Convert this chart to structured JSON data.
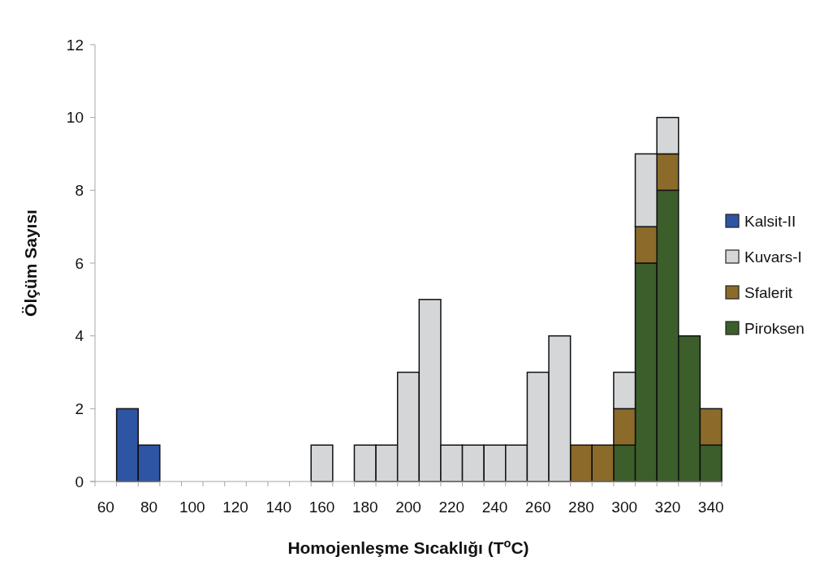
{
  "chart_data": {
    "type": "bar",
    "stacked": true,
    "xlabel": "Homojenleşme Sıcaklığı (T$^{o}$C)",
    "ylabel": "Ölçüm Sayısı",
    "categories": [
      "60",
      null,
      "80",
      null,
      "100",
      null,
      "120",
      null,
      "140",
      null,
      "160",
      null,
      "180",
      null,
      "200",
      null,
      "220",
      null,
      "240",
      null,
      "260",
      null,
      "280",
      null,
      "300",
      null,
      "320",
      null,
      "340"
    ],
    "series": [
      {
        "name": "Piroksen",
        "color": "#3b5e2b",
        "values": [
          0,
          0,
          0,
          0,
          0,
          0,
          0,
          0,
          0,
          0,
          0,
          0,
          0,
          0,
          0,
          0,
          0,
          0,
          0,
          0,
          0,
          0,
          0,
          0,
          1,
          6,
          8,
          4,
          1
        ]
      },
      {
        "name": "Sfalerit",
        "color": "#8b6a2a",
        "values": [
          0,
          0,
          0,
          0,
          0,
          0,
          0,
          0,
          0,
          0,
          0,
          0,
          0,
          0,
          0,
          0,
          0,
          0,
          0,
          0,
          0,
          0,
          1,
          1,
          1,
          1,
          1,
          0,
          1
        ]
      },
      {
        "name": "Kuvars-I",
        "color": "#d5d6d8",
        "values": [
          0,
          0,
          0,
          0,
          0,
          0,
          0,
          0,
          0,
          0,
          1,
          0,
          1,
          1,
          3,
          5,
          1,
          1,
          1,
          1,
          3,
          4,
          0,
          0,
          1,
          2,
          1,
          0,
          0
        ]
      },
      {
        "name": "Kalsit-II",
        "color": "#2e55a3",
        "values": [
          0,
          2,
          1,
          0,
          0,
          0,
          0,
          0,
          0,
          0,
          0,
          0,
          0,
          0,
          0,
          0,
          0,
          0,
          0,
          0,
          0,
          0,
          0,
          0,
          0,
          0,
          0,
          0,
          0
        ]
      }
    ],
    "ylim": [
      0,
      12
    ],
    "yticks": [
      0,
      2,
      4,
      6,
      8,
      10,
      12
    ],
    "grid": false,
    "legend": "right"
  }
}
